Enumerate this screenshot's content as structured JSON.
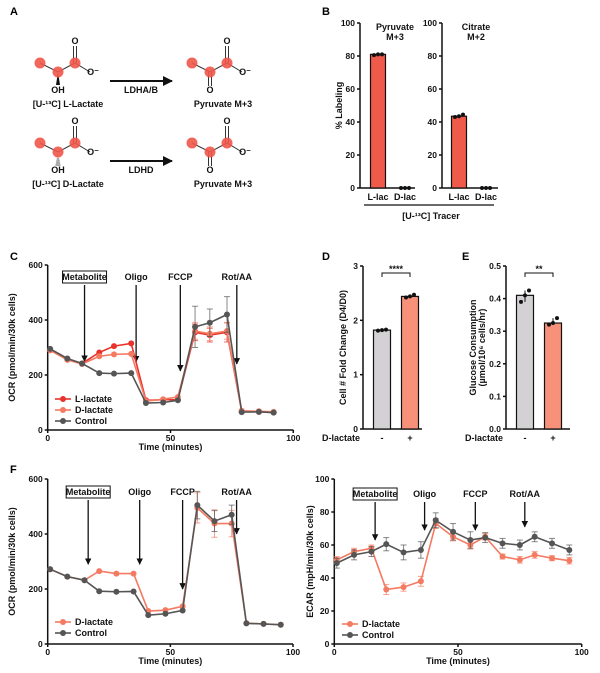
{
  "panel_labels": {
    "A": "A",
    "B": "B",
    "C": "C",
    "D": "D",
    "E": "E",
    "F": "F"
  },
  "colors": {
    "l_lactate": "#e8322c",
    "d_lactate": "#f47a62",
    "control": "#555555",
    "bar_red": "#f05a4a",
    "bar_gray": "#d4d1d4",
    "bar_salmon": "#f7917a",
    "carbon": "#f0564a"
  },
  "panelA": {
    "reactions": [
      {
        "substrate": "[U-¹³C] L-Lactate",
        "enzyme": "LDHA/B",
        "product": "Pyruvate M+3",
        "oh": "OH",
        "o": "O",
        "o_minus": "O⁻"
      },
      {
        "substrate": "[U-¹³C] D-Lactate",
        "enzyme": "LDHD",
        "product": "Pyruvate M+3",
        "oh": "OH",
        "o": "O",
        "o_minus": "O⁻"
      }
    ]
  },
  "chart_data": [
    {
      "id": "B-pyruvate",
      "type": "bar",
      "title_line1": "Pyruvate",
      "title_line2": "M+3",
      "categories": [
        "L-lac",
        "D-lac"
      ],
      "values": [
        81,
        0
      ],
      "replicates": [
        [
          80.5,
          81,
          81
        ],
        [
          0,
          0,
          0
        ]
      ],
      "ylabel": "% Labeling",
      "ylim": [
        0,
        100
      ],
      "yticks": [
        "0",
        "20",
        "40",
        "60",
        "80",
        "100"
      ],
      "shared_xlabel": "[U-¹³C] Tracer"
    },
    {
      "id": "B-citrate",
      "type": "bar",
      "title_line1": "Citrate",
      "title_line2": "M+2",
      "categories": [
        "L-lac",
        "D-lac"
      ],
      "values": [
        43.5,
        0
      ],
      "replicates": [
        [
          43,
          43.5,
          44.5
        ],
        [
          0,
          0,
          0
        ]
      ],
      "ylim": [
        0,
        100
      ],
      "yticks": [
        "0",
        "20",
        "40",
        "60",
        "80",
        "100"
      ]
    },
    {
      "id": "C",
      "type": "line",
      "xlabel": "Time (minutes)",
      "ylabel": "OCR (pmol/min/30k cells)",
      "xlim": [
        0,
        100
      ],
      "ylim": [
        0,
        600
      ],
      "xticks": [
        "0",
        "50",
        "100"
      ],
      "yticks": [
        "0",
        "200",
        "400",
        "600"
      ],
      "injections": [
        {
          "label": "Metabolite",
          "boxed": true,
          "time": 15,
          "arrow_to": 250
        },
        {
          "label": "Oligo",
          "time": 36,
          "arrow_to": 248
        },
        {
          "label": "FCCP",
          "time": 54,
          "arrow_to": 215
        },
        {
          "label": "Rot/AA",
          "time": 77,
          "arrow_to": 240
        }
      ],
      "x": [
        1,
        8,
        14,
        21,
        27,
        34,
        40,
        47,
        53,
        60,
        66,
        73,
        79,
        86,
        92
      ],
      "series": [
        {
          "name": "L-lactate",
          "color_key": "l_lactate",
          "values": [
            290,
            258,
            242,
            282,
            305,
            315,
            108,
            110,
            110,
            355,
            345,
            355,
            68,
            66,
            64
          ],
          "error": [
            0,
            0,
            0,
            0,
            0,
            0,
            0,
            0,
            0,
            30,
            25,
            35,
            0,
            0,
            0
          ]
        },
        {
          "name": "D-lactate",
          "color_key": "d_lactate",
          "values": [
            290,
            255,
            240,
            268,
            275,
            277,
            105,
            112,
            120,
            360,
            350,
            360,
            70,
            68,
            66
          ],
          "error": [
            0,
            0,
            0,
            0,
            0,
            0,
            0,
            0,
            0,
            30,
            25,
            30,
            0,
            0,
            0
          ]
        },
        {
          "name": "Control",
          "color_key": "control",
          "values": [
            295,
            260,
            242,
            207,
            205,
            207,
            98,
            100,
            108,
            375,
            390,
            420,
            65,
            66,
            63
          ],
          "error": [
            0,
            0,
            0,
            0,
            0,
            0,
            0,
            0,
            0,
            75,
            50,
            65,
            0,
            0,
            0
          ]
        }
      ]
    },
    {
      "id": "D",
      "type": "bar",
      "ylabel": "Cell # Fold Change (D4/D0)",
      "xlabel": "D-lactate",
      "categories": [
        "-",
        "+"
      ],
      "values": [
        1.82,
        2.44
      ],
      "replicates": [
        [
          1.81,
          1.82,
          1.83
        ],
        [
          2.42,
          2.44,
          2.47
        ]
      ],
      "ylim": [
        0,
        3
      ],
      "yticks": [
        "0",
        "1",
        "2",
        "3"
      ],
      "significance": "****"
    },
    {
      "id": "E",
      "type": "bar",
      "ylabel": "Glucose Consumption",
      "ylabel_unit": "(µmol/10⁶ cells/hr)",
      "xlabel": "D-lactate",
      "categories": [
        "-",
        "+"
      ],
      "values": [
        0.41,
        0.325
      ],
      "replicates": [
        [
          0.39,
          0.41,
          0.425
        ],
        [
          0.32,
          0.325,
          0.34
        ]
      ],
      "ylim": [
        0,
        0.5
      ],
      "yticks": [
        "0.0",
        "0.1",
        "0.2",
        "0.3",
        "0.4",
        "0.5"
      ],
      "significance": "**"
    },
    {
      "id": "F-OCR",
      "type": "line",
      "xlabel": "Time (minutes)",
      "ylabel": "OCR (pmol/min/30k cells)",
      "xlim": [
        0,
        100
      ],
      "ylim": [
        0,
        600
      ],
      "xticks": [
        "0",
        "50",
        "100"
      ],
      "yticks": [
        "0",
        "200",
        "400",
        "600"
      ],
      "injections": [
        {
          "label": "Metabolite",
          "boxed": true,
          "time": 16.5,
          "arrow_to": 290
        },
        {
          "label": "Oligo",
          "time": 37.5,
          "arrow_to": 290
        },
        {
          "label": "FCCP",
          "time": 55,
          "arrow_to": 200
        },
        {
          "label": "Rot/AA",
          "time": 77,
          "arrow_to": 400
        }
      ],
      "x": [
        1,
        8,
        15,
        21,
        28,
        35,
        41,
        48,
        55,
        61,
        68,
        75,
        81,
        88,
        95
      ],
      "series": [
        {
          "name": "D-lactate",
          "color_key": "d_lactate",
          "values": [
            272,
            245,
            232,
            265,
            256,
            256,
            120,
            123,
            137,
            495,
            438,
            438,
            76,
            73,
            70
          ],
          "error": [
            0,
            0,
            0,
            0,
            0,
            0,
            0,
            0,
            0,
            55,
            50,
            48,
            0,
            0,
            0
          ]
        },
        {
          "name": "Control",
          "color_key": "control",
          "values": [
            272,
            245,
            232,
            192,
            190,
            191,
            105,
            110,
            122,
            505,
            447,
            470,
            75,
            73,
            70
          ],
          "error": [
            0,
            0,
            0,
            0,
            0,
            0,
            0,
            0,
            0,
            50,
            38,
            35,
            0,
            0,
            0
          ]
        }
      ]
    },
    {
      "id": "F-ECAR",
      "type": "line",
      "xlabel": "Time (minutes)",
      "ylabel": "ECAR (mpH/min/30k cells)",
      "xlim": [
        0,
        100
      ],
      "ylim": [
        0,
        100
      ],
      "xticks": [
        "0",
        "50",
        "100"
      ],
      "yticks": [
        "0",
        "20",
        "40",
        "60",
        "80",
        "100"
      ],
      "injections": [
        {
          "label": "Metabolite",
          "boxed": true,
          "time": 16.5,
          "arrow_to": 63
        },
        {
          "label": "Oligo",
          "time": 36.5,
          "arrow_to": 69
        },
        {
          "label": "FCCP",
          "time": 57,
          "arrow_to": 69
        },
        {
          "label": "Rot/AA",
          "time": 77,
          "arrow_to": 71
        }
      ],
      "x": [
        1,
        8,
        15,
        21,
        28,
        35,
        41,
        48,
        55,
        61,
        68,
        75,
        81,
        88,
        95
      ],
      "series": [
        {
          "name": "D-lactate",
          "color_key": "d_lactate",
          "values": [
            51,
            56,
            58,
            33,
            34.5,
            38,
            73,
            65,
            60,
            65,
            53,
            51,
            54,
            52,
            50.5
          ],
          "error": [
            2,
            2,
            2,
            3,
            2.5,
            3,
            3,
            2.5,
            2.5,
            2,
            1.5,
            2,
            2,
            1.5,
            2
          ]
        },
        {
          "name": "Control",
          "color_key": "control",
          "values": [
            49,
            54,
            56,
            60.5,
            55.5,
            57,
            75,
            68,
            63,
            64.5,
            61,
            60,
            65,
            61,
            57
          ],
          "error": [
            3,
            3,
            3,
            4,
            4.5,
            5,
            4.5,
            5,
            5,
            3,
            3,
            3,
            3,
            3,
            3
          ]
        }
      ]
    }
  ]
}
